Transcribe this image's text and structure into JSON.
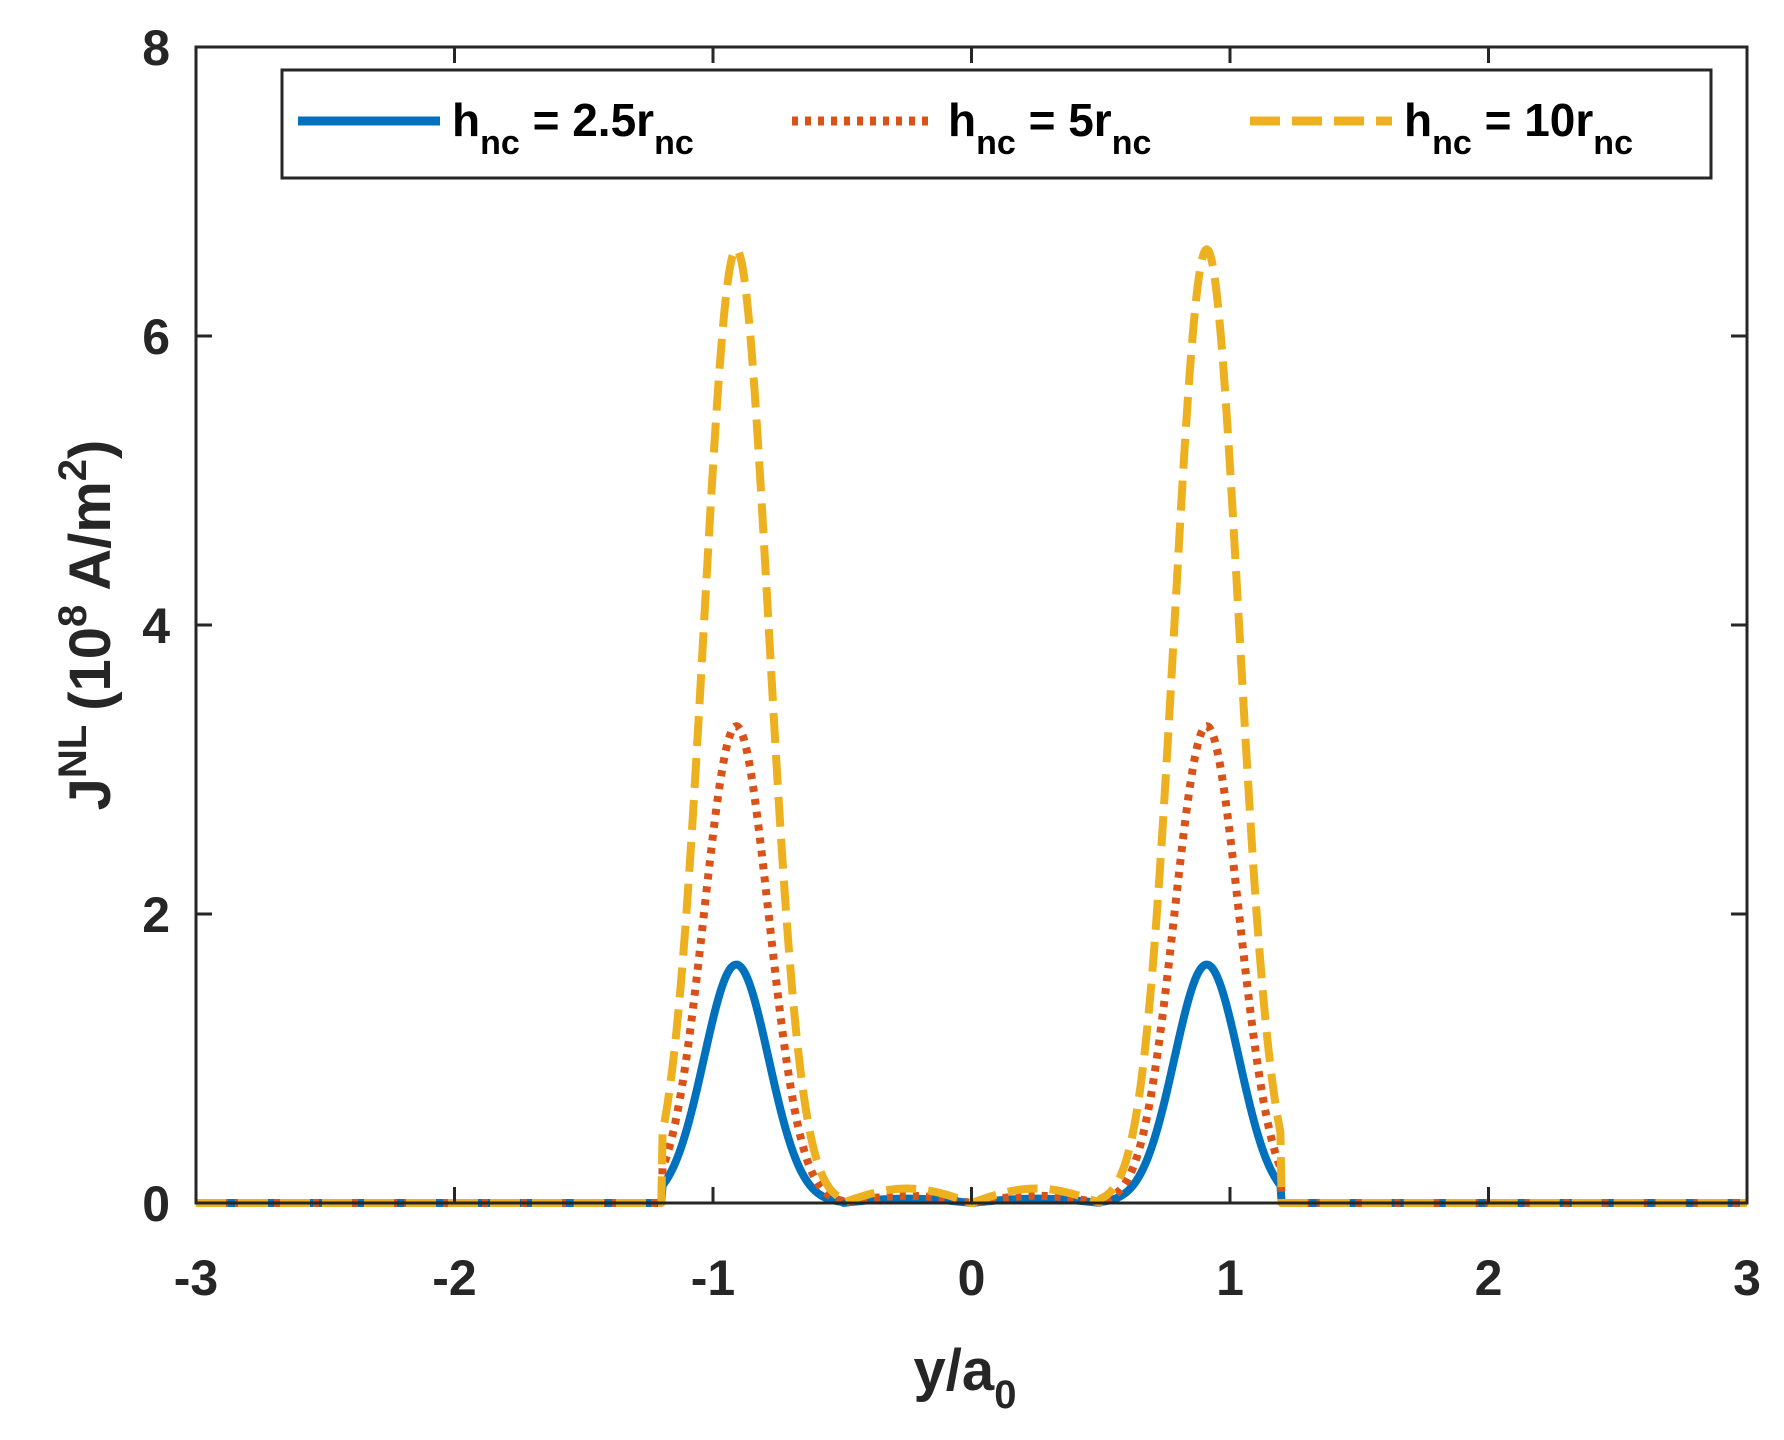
{
  "chart_data": {
    "type": "line",
    "title": "",
    "xlabel": {
      "main": "y/a",
      "sub": "0"
    },
    "ylabel": {
      "main": "J",
      "sup": "NL",
      "unit_pre": "(10",
      "unit_exp": "8",
      "unit_mid": " A/m",
      "unit_exp2": "2",
      "unit_post": ")"
    },
    "xlim": [
      -3,
      3
    ],
    "ylim": [
      0,
      8
    ],
    "xticks": [
      -3,
      -2,
      -1,
      0,
      1,
      2,
      3
    ],
    "yticks": [
      0,
      2,
      4,
      6,
      8
    ],
    "xtick_labels": [
      "-3",
      "-2",
      "-1",
      "0",
      "1",
      "2",
      "3"
    ],
    "ytick_labels": [
      "0",
      "2",
      "4",
      "6",
      "8"
    ],
    "legend_position": "top",
    "series": [
      {
        "name": "h_nc = 2.5r_nc",
        "legend": {
          "a": "h",
          "a_sub": "nc",
          "mid": " = 2.5r",
          "b_sub": "nc"
        },
        "color": "#0072BD",
        "style": "solid",
        "peak": 1.65,
        "peak_x": 0.91,
        "width": 0.125,
        "cutoff": 1.2,
        "inner_edge": 0.5,
        "inner_val": 0.03
      },
      {
        "name": "h_nc = 5r_nc",
        "legend": {
          "a": "h",
          "a_sub": "nc",
          "mid": " = 5r",
          "b_sub": "nc"
        },
        "color": "#D95319",
        "style": "dotted",
        "peak": 3.3,
        "peak_x": 0.91,
        "width": 0.125,
        "cutoff": 1.2,
        "inner_edge": 0.5,
        "inner_val": 0.05
      },
      {
        "name": "h_nc = 10r_nc",
        "legend": {
          "a": "h",
          "a_sub": "nc",
          "mid": " = 10r",
          "b_sub": "nc"
        },
        "color": "#EDB120",
        "style": "dashed",
        "peak": 6.6,
        "peak_x": 0.91,
        "width": 0.125,
        "cutoff": 1.2,
        "inner_edge": 0.5,
        "inner_val": 0.1
      }
    ]
  }
}
